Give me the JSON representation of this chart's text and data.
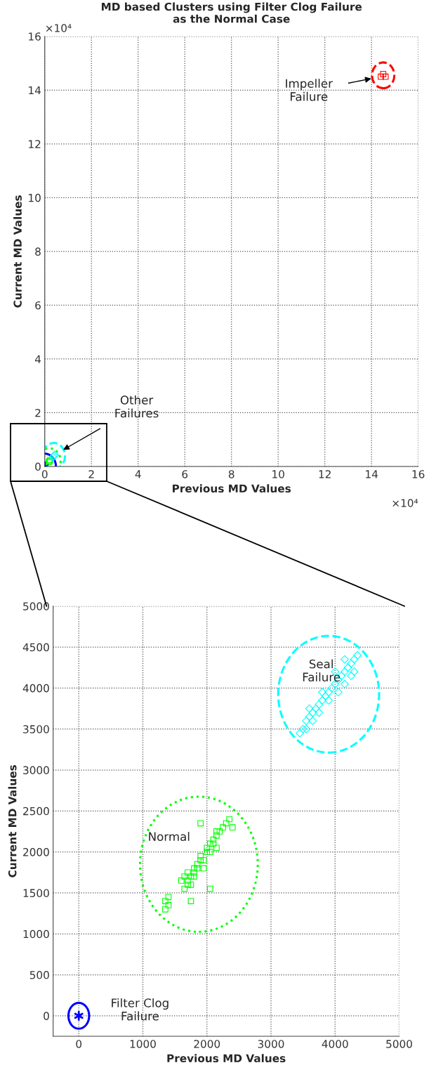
{
  "chart_data": [
    {
      "type": "scatter",
      "title": "MD based Clusters using Filter Clog Failure\nas the Normal Case",
      "xlabel": "Previous MD Values",
      "ylabel": "Current MD Values",
      "xlim": [
        0,
        16
      ],
      "ylim": [
        0,
        16
      ],
      "xticks": [
        0,
        2,
        4,
        6,
        8,
        10,
        12,
        14,
        16
      ],
      "yticks": [
        0,
        2,
        4,
        6,
        8,
        10,
        12,
        14,
        16
      ],
      "grid": true,
      "annotations": [
        "×10⁴",
        "×10⁴",
        "Impeller\nFailure",
        "Other\nFailures"
      ],
      "series": [
        {
          "color": "#0000ff",
          "x": [
            0
          ],
          "values": [
            0
          ]
        },
        {
          "color": "#00ff00",
          "marker": "square",
          "x": [
            0.17,
            0.2,
            0.23
          ],
          "values": [
            0.16,
            0.2,
            0.24
          ]
        },
        {
          "color": "#00ffff",
          "marker": "diamond",
          "x": [
            0.35,
            0.4,
            0.43
          ],
          "values": [
            0.35,
            0.4,
            0.44
          ]
        },
        {
          "color": "#ff0000",
          "marker": "square",
          "x": [
            14.5,
            14.6,
            14.4
          ],
          "values": [
            14.6,
            14.5,
            14.5
          ]
        }
      ]
    },
    {
      "type": "scatter",
      "xlabel": "Previous MD Values",
      "ylabel": "Current MD Values",
      "xlim": [
        -400,
        5000
      ],
      "ylim": [
        -250,
        5000
      ],
      "xticks": [
        0,
        1000,
        2000,
        3000,
        4000,
        5000
      ],
      "yticks": [
        0,
        500,
        1000,
        1500,
        2000,
        2500,
        3000,
        3500,
        4000,
        4500,
        5000
      ],
      "grid": true,
      "annotations": [
        "Seal\nFailure",
        "Normal",
        "Filter Clog\nFailure"
      ],
      "series": [
        {
          "color": "#0000ff",
          "x": [
            0
          ],
          "values": [
            0
          ]
        },
        {
          "color": "#00ff00",
          "marker": "square",
          "x": [
            1650,
            1700,
            1700,
            1750,
            1800,
            1800,
            1800,
            1850,
            1850,
            1900,
            1900,
            1950,
            2000,
            2000,
            2050,
            2050,
            2100,
            2100,
            2150,
            2150,
            2200,
            2250,
            2300,
            2350,
            1600,
            1700,
            1750,
            1950,
            2150,
            1900,
            1750,
            1400,
            1350,
            1400,
            1350,
            2400,
            2050,
            1650
          ],
          "values": [
            1550,
            1600,
            1650,
            1700,
            1750,
            1700,
            1800,
            1850,
            1800,
            1900,
            1950,
            1900,
            2000,
            2050,
            2000,
            2100,
            2150,
            2100,
            2200,
            2250,
            2250,
            2300,
            2350,
            2400,
            1650,
            1750,
            1600,
            1800,
            2050,
            2350,
            1400,
            1450,
            1400,
            1350,
            1300,
            2300,
            1550,
            1700
          ]
        },
        {
          "color": "#00ffff",
          "marker": "diamond",
          "x": [
            3450,
            3500,
            3550,
            3600,
            3650,
            3700,
            3750,
            3800,
            3850,
            3900,
            3950,
            4000,
            4050,
            4100,
            4150,
            4200,
            4250,
            4300,
            4350,
            3550,
            3650,
            3750,
            3900,
            4050,
            4150,
            4250,
            3600,
            3800,
            4000,
            4150,
            4300
          ],
          "values": [
            3450,
            3500,
            3600,
            3650,
            3700,
            3750,
            3800,
            3850,
            3900,
            3950,
            4000,
            4050,
            4100,
            4150,
            4200,
            4250,
            4300,
            4350,
            4400,
            3500,
            3600,
            3700,
            3850,
            3950,
            4050,
            4150,
            3750,
            3950,
            4200,
            4350,
            4200
          ]
        }
      ]
    }
  ]
}
